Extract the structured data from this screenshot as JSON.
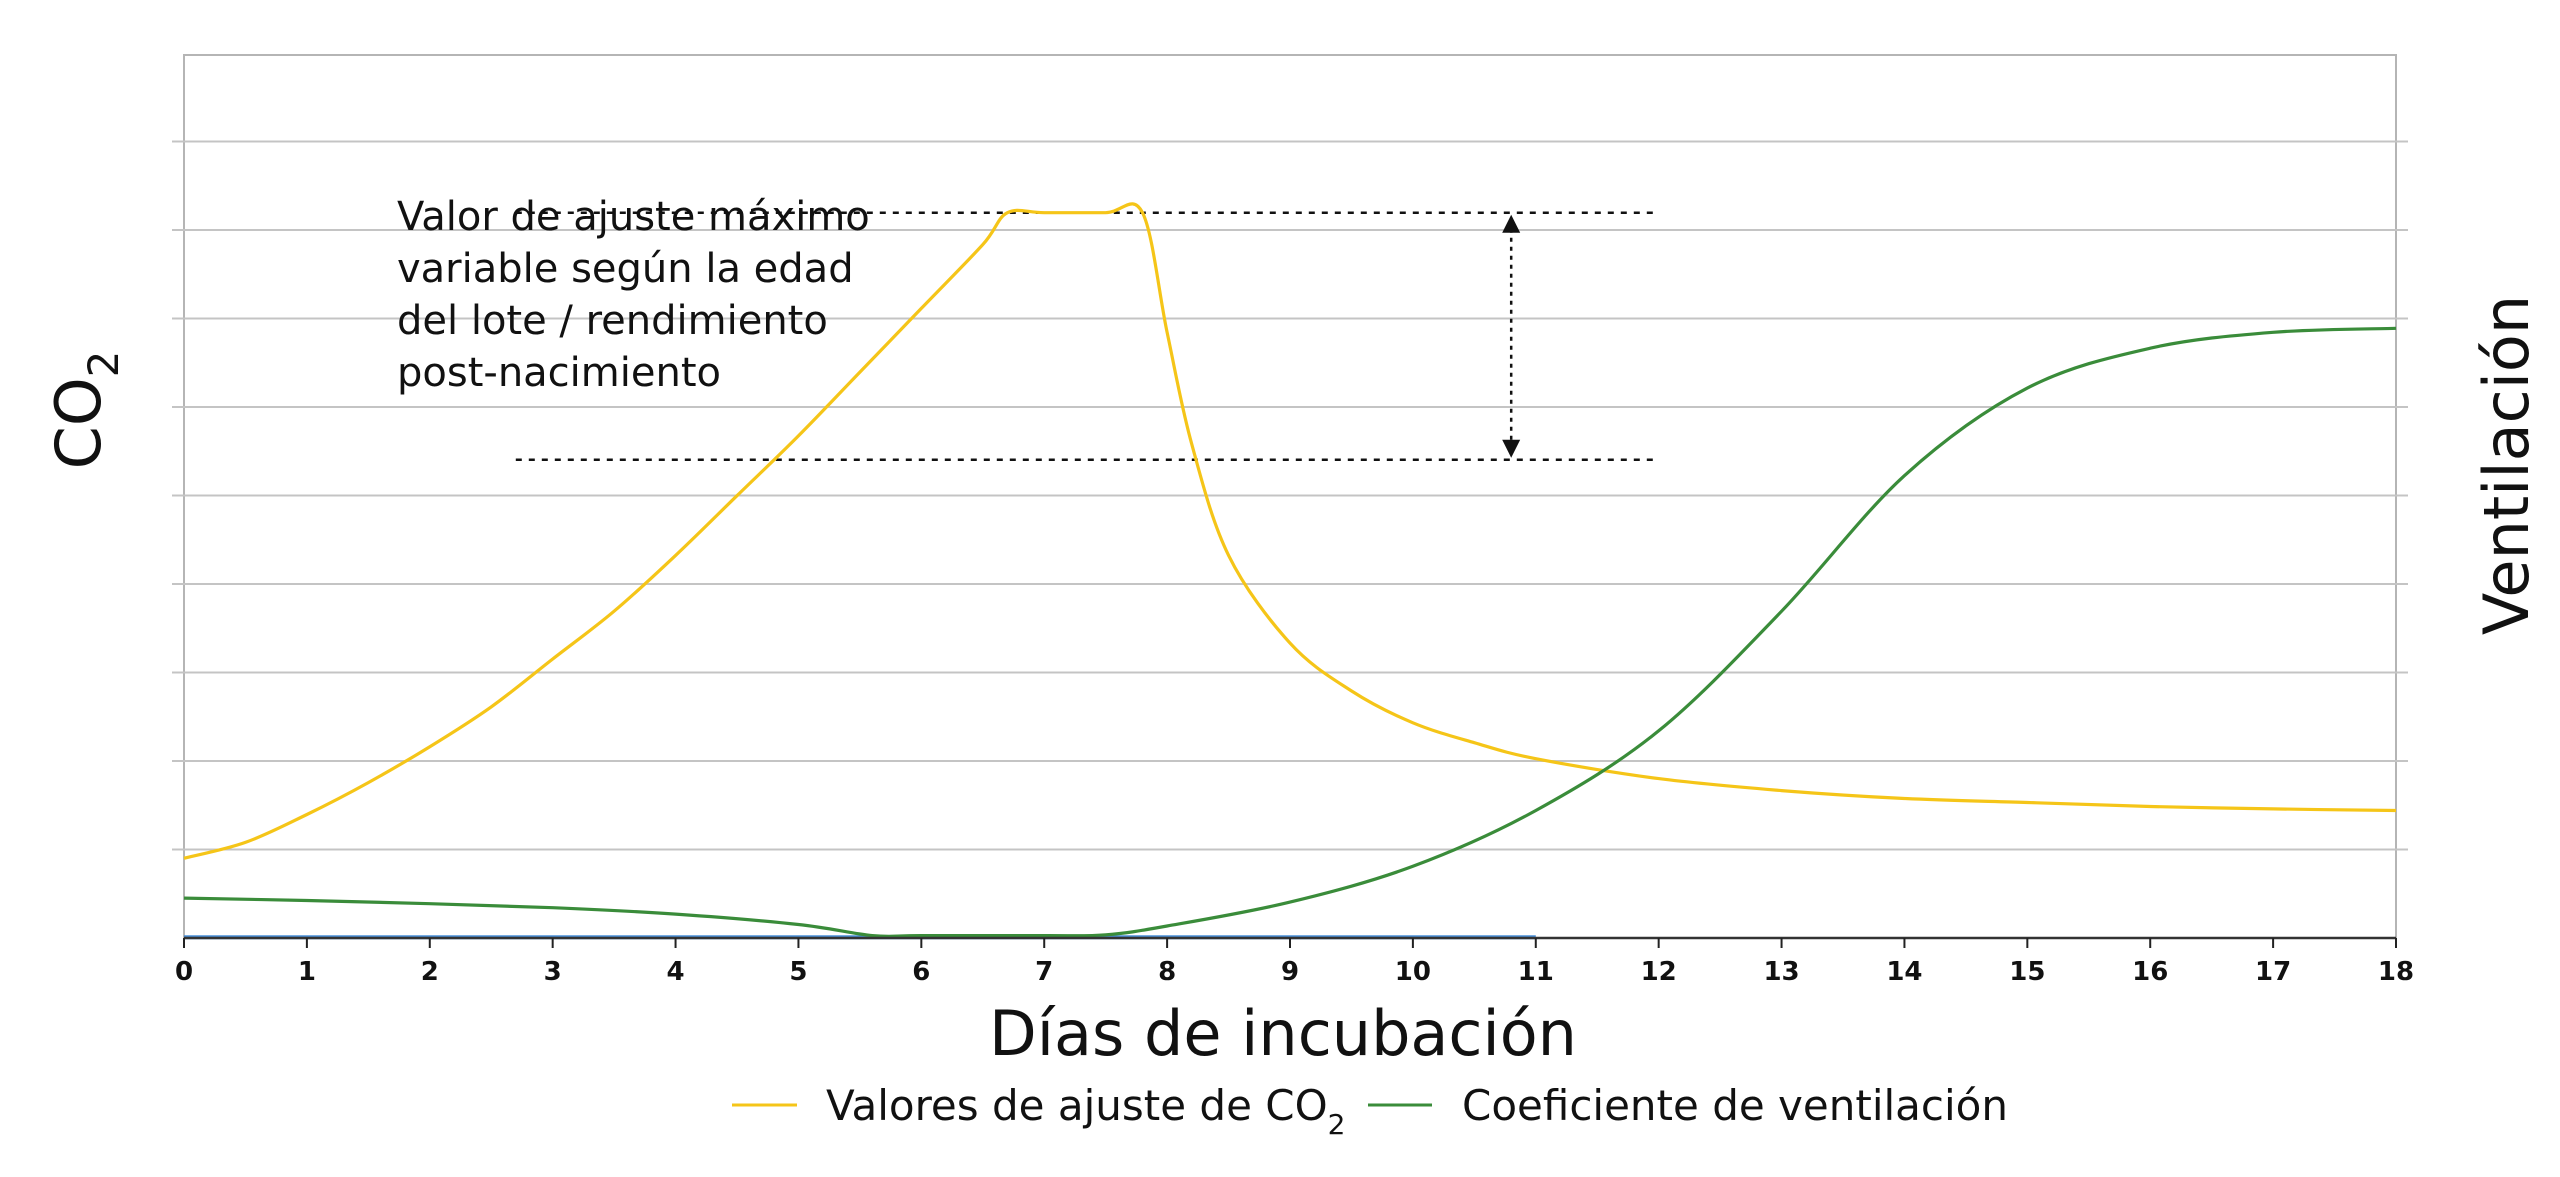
{
  "chart_data": {
    "type": "line",
    "xlabel": "Días de incubación",
    "ylabel_left": {
      "base": "CO",
      "sub": "2"
    },
    "ylabel_right": "Ventilación",
    "xlim": [
      0,
      18
    ],
    "x_ticks": [
      "0",
      "1",
      "2",
      "3",
      "4",
      "5",
      "6",
      "7",
      "8",
      "9",
      "10",
      "11",
      "12",
      "13",
      "14",
      "15",
      "16",
      "17",
      "18"
    ],
    "grid": true,
    "legend_position": "bottom-center",
    "annotation": {
      "lines": [
        "Valor de ajuste máximo",
        "variable según la edad",
        "del lote / rendimiento",
        "post-nacimiento"
      ],
      "upper_y": 0.91,
      "lower_y": 0.6,
      "x_start": 2.7,
      "x_end": 12.0,
      "arrow_x": 10.8
    },
    "series": [
      {
        "name": {
          "base": "Valores de ajuste de  CO",
          "sub": "2"
        },
        "color": "#f5c518",
        "x": [
          0,
          0.5,
          1,
          1.5,
          2,
          2.5,
          3,
          3.5,
          4,
          4.5,
          5,
          5.5,
          6,
          6.5,
          6.7,
          7,
          7.5,
          7.8,
          8,
          8.2,
          8.5,
          9,
          9.5,
          10,
          10.5,
          11,
          12,
          13,
          14,
          15,
          16,
          17,
          18
        ],
        "y": [
          0.1,
          0.12,
          0.155,
          0.195,
          0.24,
          0.29,
          0.35,
          0.41,
          0.48,
          0.555,
          0.63,
          0.71,
          0.79,
          0.87,
          0.91,
          0.91,
          0.91,
          0.91,
          0.76,
          0.62,
          0.48,
          0.37,
          0.31,
          0.27,
          0.245,
          0.225,
          0.2,
          0.185,
          0.175,
          0.17,
          0.165,
          0.162,
          0.16
        ]
      },
      {
        "name": {
          "base": "Coeficiente de ventilación",
          "sub": ""
        },
        "color": "#3a8c3a",
        "x": [
          0,
          1,
          2,
          3,
          4,
          5,
          5.6,
          6,
          7,
          7.5,
          8,
          9,
          10,
          11,
          12,
          13,
          14,
          15,
          16,
          17,
          18
        ],
        "y": [
          0.05,
          0.047,
          0.043,
          0.038,
          0.03,
          0.017,
          0.003,
          0.003,
          0.003,
          0.004,
          0.015,
          0.045,
          0.09,
          0.16,
          0.26,
          0.41,
          0.58,
          0.69,
          0.74,
          0.76,
          0.765
        ]
      }
    ],
    "baseline_series": {
      "color": "#4a90d9",
      "x": [
        0,
        11
      ],
      "y": [
        0.001,
        0.001
      ]
    }
  }
}
